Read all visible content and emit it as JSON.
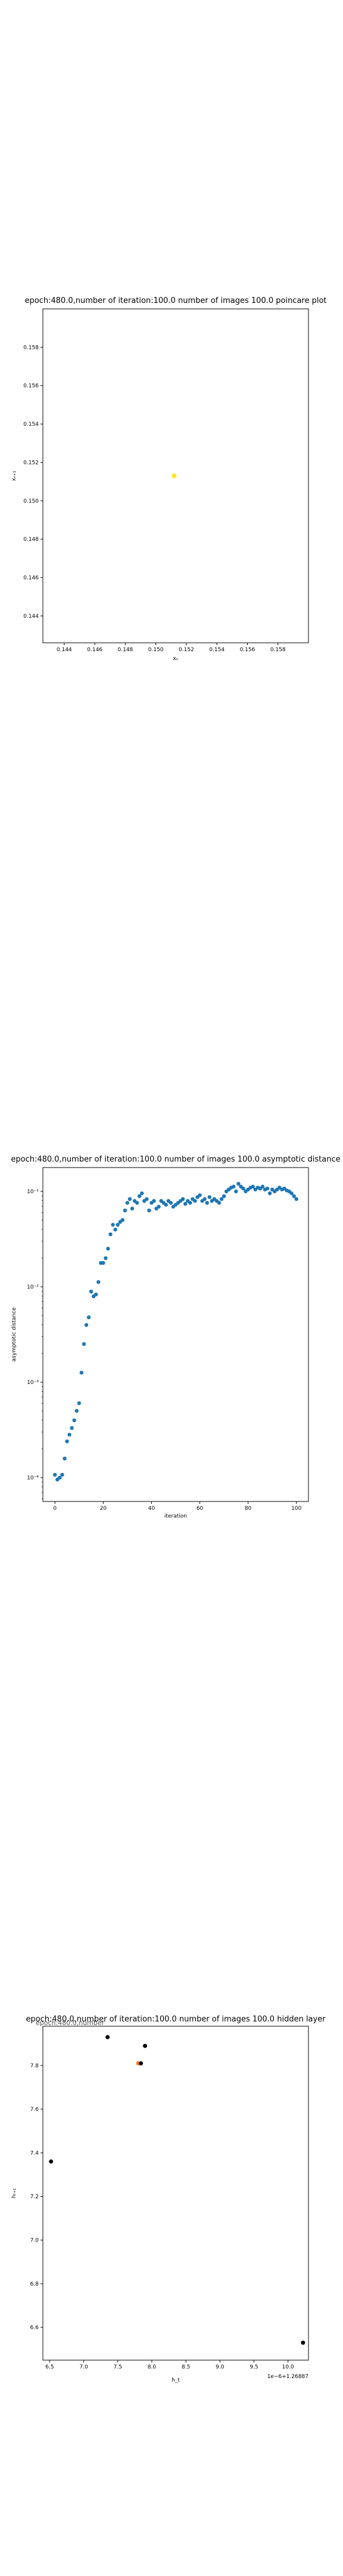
{
  "chart_data": [
    {
      "type": "scatter",
      "title": "epoch:480.0,number of iteration:100.0 number of images 100.0 poincare plot",
      "xlabel": "xₙ",
      "ylabel": "xₙ₊₁",
      "xlim": [
        0.1426,
        0.16
      ],
      "ylim": [
        0.1426,
        0.16
      ],
      "xticks": [
        0.144,
        0.146,
        0.148,
        0.15,
        0.152,
        0.154,
        0.156,
        0.158
      ],
      "xtick_labels": [
        "0.144",
        "0.146",
        "0.148",
        "0.150",
        "0.152",
        "0.154",
        "0.156",
        "0.158"
      ],
      "yticks": [
        0.144,
        0.146,
        0.148,
        0.15,
        0.152,
        0.154,
        0.156,
        0.158
      ],
      "ytick_labels": [
        "0.144",
        "0.146",
        "0.148",
        "0.150",
        "0.152",
        "0.154",
        "0.156",
        "0.158"
      ],
      "points": [
        {
          "x": 0.1512,
          "y": 0.1513
        }
      ],
      "point_color": "#fde725",
      "grid": false
    },
    {
      "type": "scatter",
      "title": "epoch:480.0,number of iteration:100.0  number of images 100.0 asymptotic distance",
      "xlabel": "iteration",
      "ylabel": "asymptotic distance",
      "xlim": [
        -5,
        105
      ],
      "yscale": "log",
      "ylim_log10": [
        -4.25,
        -0.75
      ],
      "xticks": [
        0,
        20,
        40,
        60,
        80,
        100
      ],
      "xtick_labels": [
        "0",
        "20",
        "40",
        "60",
        "80",
        "100"
      ],
      "yticks_log10": [
        -4,
        -3,
        -2,
        -1
      ],
      "ytick_labels": [
        "10⁻⁴",
        "10⁻³",
        "10⁻²",
        "10⁻¹"
      ],
      "point_color": "#1f77b4",
      "x": [
        0,
        1,
        2,
        3,
        4,
        5,
        6,
        7,
        8,
        9,
        10,
        11,
        12,
        13,
        14,
        15,
        16,
        17,
        18,
        19,
        20,
        21,
        22,
        23,
        24,
        25,
        26,
        27,
        28,
        29,
        30,
        31,
        32,
        33,
        34,
        35,
        36,
        37,
        38,
        39,
        40,
        41,
        42,
        43,
        44,
        45,
        46,
        47,
        48,
        49,
        50,
        51,
        52,
        53,
        54,
        55,
        56,
        57,
        58,
        59,
        60,
        61,
        62,
        63,
        64,
        65,
        66,
        67,
        68,
        69,
        70,
        71,
        72,
        73,
        74,
        75,
        76,
        77,
        78,
        79,
        80,
        81,
        82,
        83,
        84,
        85,
        86,
        87,
        88,
        89,
        90,
        91,
        92,
        93,
        94,
        95,
        96,
        97,
        98,
        99,
        100
      ],
      "y_log10": [
        -3.97,
        -4.02,
        -4.0,
        -3.97,
        -3.8,
        -3.62,
        -3.55,
        -3.48,
        -3.4,
        -3.3,
        -3.22,
        -2.9,
        -2.6,
        -2.4,
        -2.32,
        -2.05,
        -2.1,
        -2.08,
        -1.95,
        -1.75,
        -1.75,
        -1.7,
        -1.6,
        -1.45,
        -1.35,
        -1.4,
        -1.35,
        -1.32,
        -1.3,
        -1.2,
        -1.12,
        -1.08,
        -1.18,
        -1.1,
        -1.12,
        -1.05,
        -1.02,
        -1.1,
        -1.08,
        -1.2,
        -1.12,
        -1.1,
        -1.18,
        -1.16,
        -1.1,
        -1.12,
        -1.14,
        -1.1,
        -1.12,
        -1.16,
        -1.14,
        -1.12,
        -1.1,
        -1.08,
        -1.13,
        -1.1,
        -1.12,
        -1.08,
        -1.1,
        -1.06,
        -1.04,
        -1.1,
        -1.08,
        -1.12,
        -1.06,
        -1.1,
        -1.08,
        -1.1,
        -1.12,
        -1.08,
        -1.05,
        -1.0,
        -0.98,
        -0.96,
        -0.95,
        -1.0,
        -0.92,
        -0.95,
        -0.97,
        -1.0,
        -0.98,
        -0.96,
        -0.95,
        -0.98,
        -0.96,
        -0.97,
        -0.95,
        -0.98,
        -0.97,
        -1.02,
        -0.98,
        -1.0,
        -0.98,
        -0.96,
        -0.98,
        -0.97,
        -0.99,
        -1.0,
        -1.02,
        -1.05,
        -1.08
      ],
      "grid": false
    },
    {
      "type": "scatter",
      "title": "epoch:480.0,number of iteration:100.0  number of images 100.0 hidden layer",
      "xlabel": "h_t",
      "ylabel": "hₜ₊₁",
      "offset_text": "1e−6+1.26887",
      "xlim": [
        6.4,
        10.3
      ],
      "ylim": [
        6.45,
        7.98
      ],
      "xticks": [
        6.5,
        7.0,
        7.5,
        8.0,
        8.5,
        9.0,
        9.5,
        10.0
      ],
      "xtick_labels": [
        "6.5",
        "7.0",
        "7.5",
        "8.0",
        "8.5",
        "9.0",
        "9.5",
        "10.0"
      ],
      "yticks": [
        6.6,
        6.8,
        7.0,
        7.2,
        7.4,
        7.6,
        7.8
      ],
      "ytick_labels": [
        "6.6",
        "6.8",
        "7.0",
        "7.2",
        "7.4",
        "7.6",
        "7.8"
      ],
      "overlapping_label_text": "epoch:480.0,number",
      "points": [
        {
          "x": 6.52,
          "y": 7.36,
          "color": "#000000"
        },
        {
          "x": 7.35,
          "y": 7.93,
          "color": "#000000"
        },
        {
          "x": 7.8,
          "y": 7.81,
          "color": "#ff7f0e"
        },
        {
          "x": 7.84,
          "y": 7.81,
          "color": "#000000"
        },
        {
          "x": 7.9,
          "y": 7.89,
          "color": "#000000"
        },
        {
          "x": 10.22,
          "y": 6.53,
          "color": "#000000"
        }
      ],
      "grid": false
    }
  ]
}
